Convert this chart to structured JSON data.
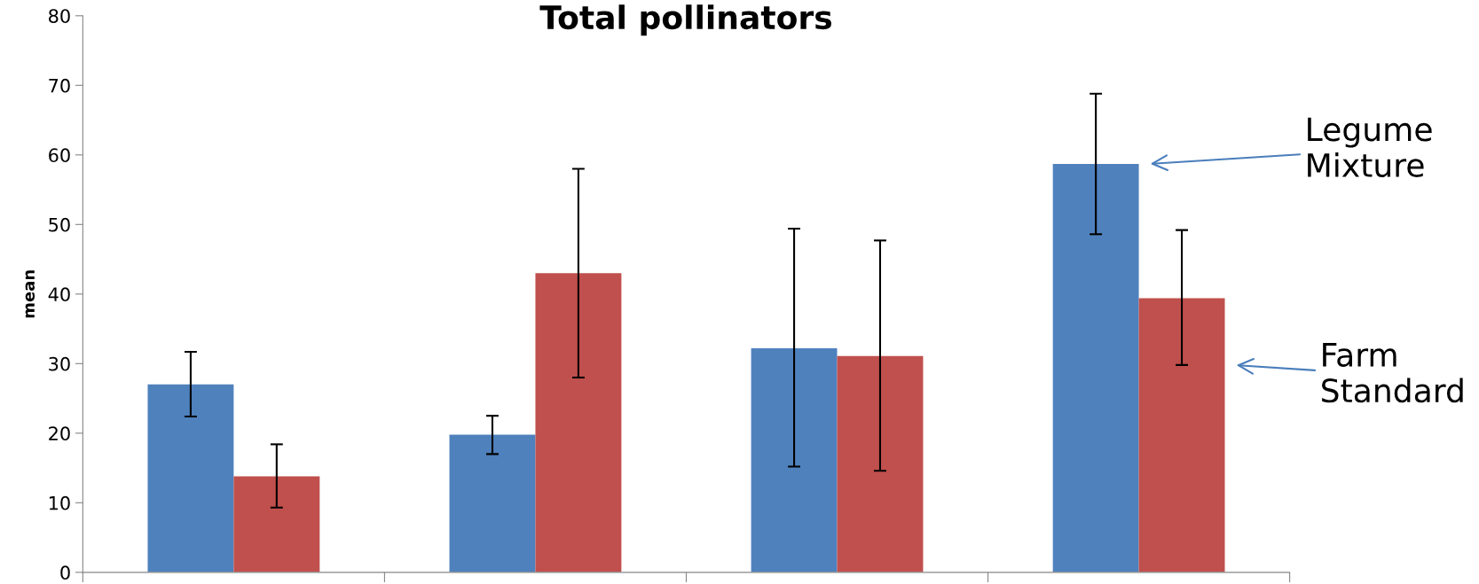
{
  "chart_data": {
    "type": "bar",
    "title": "Total pollinators",
    "ylabel": "mean",
    "categories": [
      null,
      null,
      null,
      null
    ],
    "series": [
      {
        "color": "#4f81bd",
        "values": [
          27.0,
          19.8,
          32.2,
          58.7
        ],
        "errors": [
          [
            22.4,
            31.7
          ],
          [
            17.0,
            22.5
          ],
          [
            15.2,
            49.4
          ],
          [
            48.6,
            68.8
          ]
        ]
      },
      {
        "color": "#c0504d",
        "values": [
          13.8,
          43.0,
          31.1,
          39.4
        ],
        "errors": [
          [
            9.3,
            18.4
          ],
          [
            28.0,
            58.0
          ],
          [
            14.6,
            47.7
          ],
          [
            29.8,
            49.2
          ]
        ]
      }
    ],
    "annotations": [
      "Legume\nMixture",
      "Farm\nStandard"
    ],
    "ylim": [
      0,
      80
    ],
    "yticks": [
      0,
      10,
      20,
      30,
      40,
      50,
      60,
      70,
      80
    ],
    "grid": false,
    "legend": false
  }
}
